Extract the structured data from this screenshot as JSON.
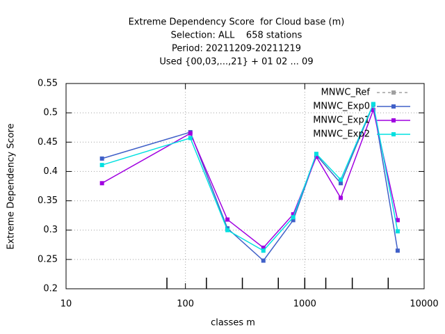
{
  "chart_data": {
    "type": "line",
    "title": [
      "Extreme Dependency Score  for Cloud base (m)",
      "Selection: ALL    658 stations",
      "Period: 20211209-20211219",
      "Used {00,03,...,21} + 01 02 ... 09"
    ],
    "x_label": "classes m",
    "y_label": "Extreme Dependency Score",
    "x": [
      20,
      110,
      225,
      450,
      800,
      1250,
      2000,
      3750,
      6000
    ],
    "series": [
      {
        "name": "MNWC_Ref",
        "color": "#a0a0a0",
        "dashed": true,
        "values": [
          null,
          null,
          null,
          null,
          null,
          null,
          null,
          null,
          null
        ]
      },
      {
        "name": "MNWC_Exp0",
        "color": "#4060c8",
        "values": [
          0.422,
          0.467,
          0.303,
          0.248,
          0.317,
          0.428,
          0.38,
          0.514,
          0.265
        ]
      },
      {
        "name": "MNWC_Exp1",
        "color": "#a000e0",
        "values": [
          0.38,
          0.465,
          0.318,
          0.27,
          0.327,
          0.425,
          0.355,
          0.505,
          0.317
        ]
      },
      {
        "name": "MNWC_Exp2",
        "color": "#00e0e0",
        "values": [
          0.411,
          0.457,
          0.3,
          0.265,
          0.322,
          0.43,
          0.386,
          0.515,
          0.298
        ]
      }
    ],
    "class_bounds": [
      70,
      150,
      300,
      600,
      1000,
      1500,
      2500,
      5000
    ],
    "xlog": true,
    "xlim": [
      10,
      10000
    ],
    "xticks": [
      10,
      100,
      1000,
      10000
    ],
    "ylim": [
      0.2,
      0.55
    ],
    "yticks": [
      0.2,
      0.25,
      0.3,
      0.35,
      0.4,
      0.45,
      0.5,
      0.55
    ],
    "grid": true,
    "legend": "top-right"
  }
}
